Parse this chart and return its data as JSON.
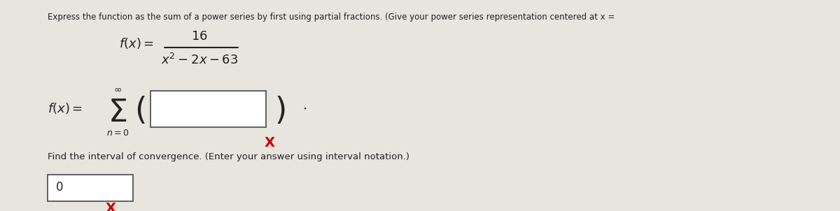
{
  "bg_color": "#e8e4de",
  "panel_color": "#f0ece6",
  "text_color": "#222222",
  "x_mark_color": "#cc0000",
  "line1": "Express the function as the sum of a power series by first using partial fractions. (Give your power series representation centered at x =",
  "find_text": "Find the interval of convergence. (Enter your answer using interval notation.)",
  "zero_text": "0",
  "numerator": "16",
  "denominator": "x^2 - 2x - 63"
}
